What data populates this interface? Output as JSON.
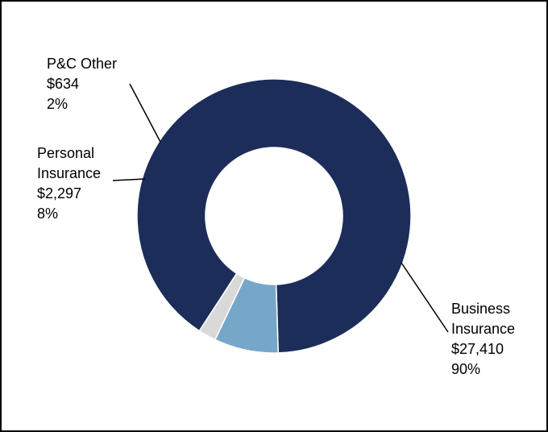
{
  "chart_data": {
    "type": "pie",
    "donut": true,
    "title": "",
    "legend": "none",
    "slices": [
      {
        "label_lines": [
          "Business",
          "Insurance"
        ],
        "value": 27410,
        "value_label": "$27,410",
        "percent_label": "90%",
        "color": "#1c2d5a"
      },
      {
        "label_lines": [
          "Personal",
          "Insurance"
        ],
        "value": 2297,
        "value_label": "$2,297",
        "percent_label": "8%",
        "color": "#77a7c8"
      },
      {
        "label_lines": [
          "P&C Other"
        ],
        "value": 634,
        "value_label": "$634",
        "percent_label": "2%",
        "color": "#d9d9d9"
      }
    ]
  }
}
